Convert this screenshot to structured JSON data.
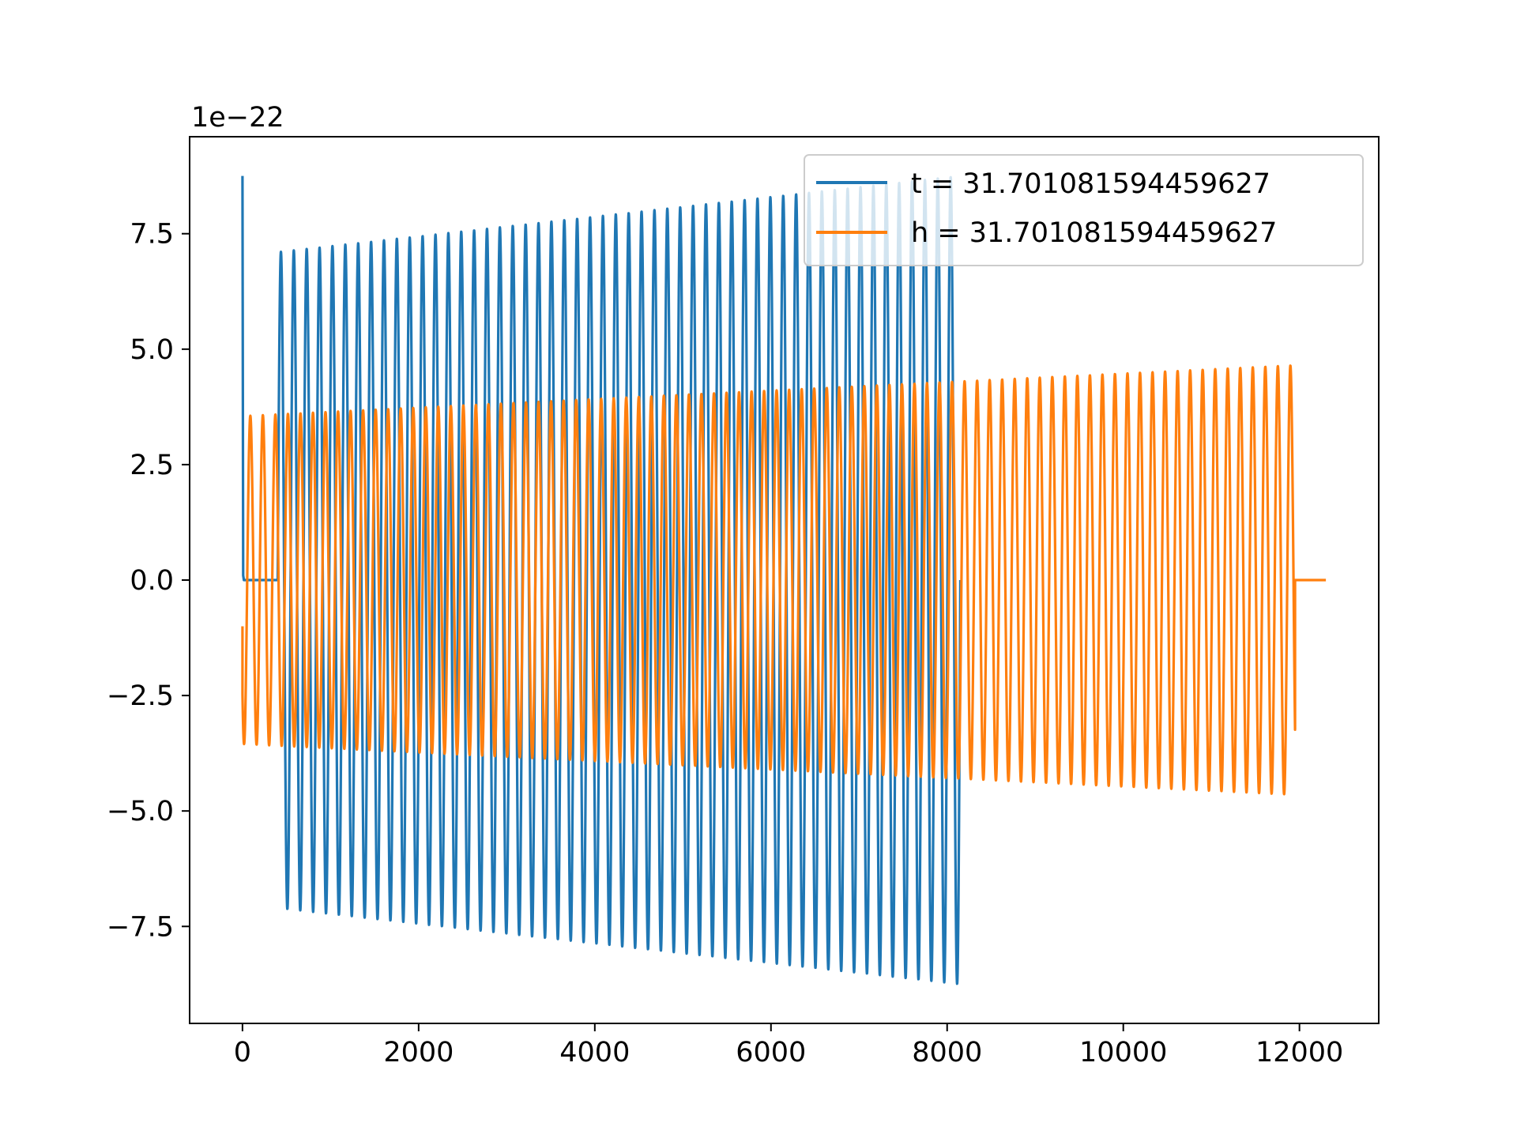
{
  "chart_data": {
    "type": "line",
    "title": "",
    "xlabel": "",
    "ylabel": "",
    "offset_label": "1e−22",
    "xlim": [
      -600,
      12900
    ],
    "ylim": [
      -9.6,
      9.6
    ],
    "x_ticks": [
      0,
      2000,
      4000,
      6000,
      8000,
      10000,
      12000
    ],
    "x_tick_labels": [
      "0",
      "2000",
      "4000",
      "6000",
      "8000",
      "10000",
      "12000"
    ],
    "y_ticks": [
      7.5,
      5.0,
      2.5,
      0.0,
      -2.5,
      -5.0,
      -7.5
    ],
    "y_tick_labels": [
      "7.5",
      "5.0",
      "2.5",
      "0.0",
      "−2.5",
      "−5.0",
      "−7.5"
    ],
    "legend_position": "top-right",
    "series": [
      {
        "name": "t = 31.701081594459627",
        "color": "#1f77b4",
        "x_range": [
          0,
          8150
        ],
        "cycles": 53,
        "amplitude_start": 7.1,
        "amplitude_end": 8.75,
        "initial_spike": 8.75,
        "flat_zero_until": 400
      },
      {
        "name": "h = 31.701081594459627",
        "color": "#ff7f0e",
        "x_range": [
          0,
          12300
        ],
        "cycles": 84,
        "amplitude_start": 3.55,
        "amplitude_end": 4.65,
        "initial_value": -1.0,
        "flat_zero_after": 11950
      }
    ]
  }
}
